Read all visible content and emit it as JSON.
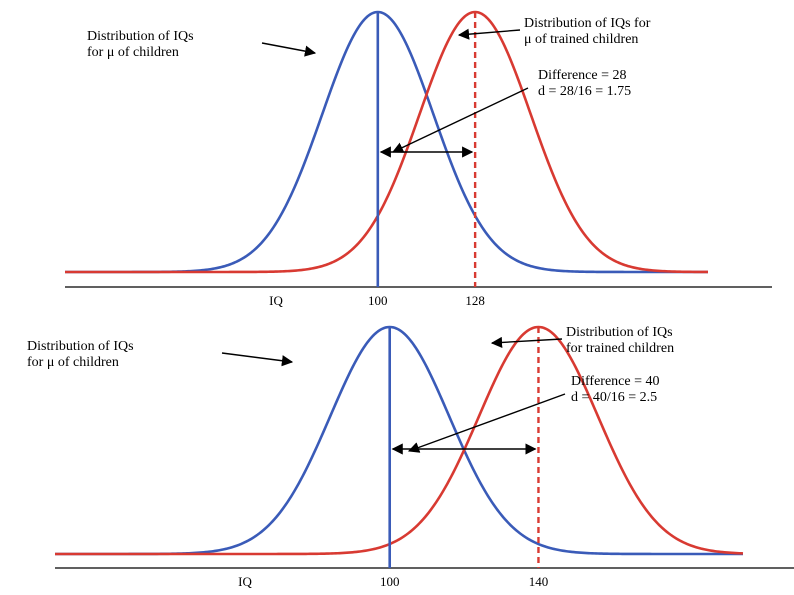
{
  "colors": {
    "control": "#3a5bb8",
    "trained": "#d83a32",
    "axis": "#000000",
    "pointer": "#000000"
  },
  "chart_data": [
    {
      "type": "line",
      "sd": 16,
      "xlim": [
        10,
        195
      ],
      "xlabel": "IQ",
      "series": [
        {
          "key": "control",
          "mean": 100
        },
        {
          "key": "trained",
          "mean": 128
        }
      ],
      "ticks": [
        {
          "value": 100,
          "label": "100"
        },
        {
          "value": 128,
          "label": "128"
        }
      ],
      "labels": {
        "left": [
          "Distribution of IQs",
          "for μ of children"
        ],
        "right": [
          "Distribution of IQs for",
          "μ of trained children"
        ],
        "diff": [
          "Difference = 28",
          "d = 28/16 = 1.75"
        ]
      }
    },
    {
      "type": "line",
      "sd": 16,
      "xlim": [
        10,
        195
      ],
      "xlabel": "IQ",
      "series": [
        {
          "key": "control",
          "mean": 100
        },
        {
          "key": "trained",
          "mean": 140
        }
      ],
      "ticks": [
        {
          "value": 100,
          "label": "100"
        },
        {
          "value": 140,
          "label": "140"
        }
      ],
      "labels": {
        "left": [
          "Distribution of IQs",
          "for μ of children"
        ],
        "right": [
          "Distribution of IQs",
          "for trained children"
        ],
        "diff": [
          "Difference = 40",
          "d = 40/16 = 2.5"
        ]
      }
    }
  ]
}
